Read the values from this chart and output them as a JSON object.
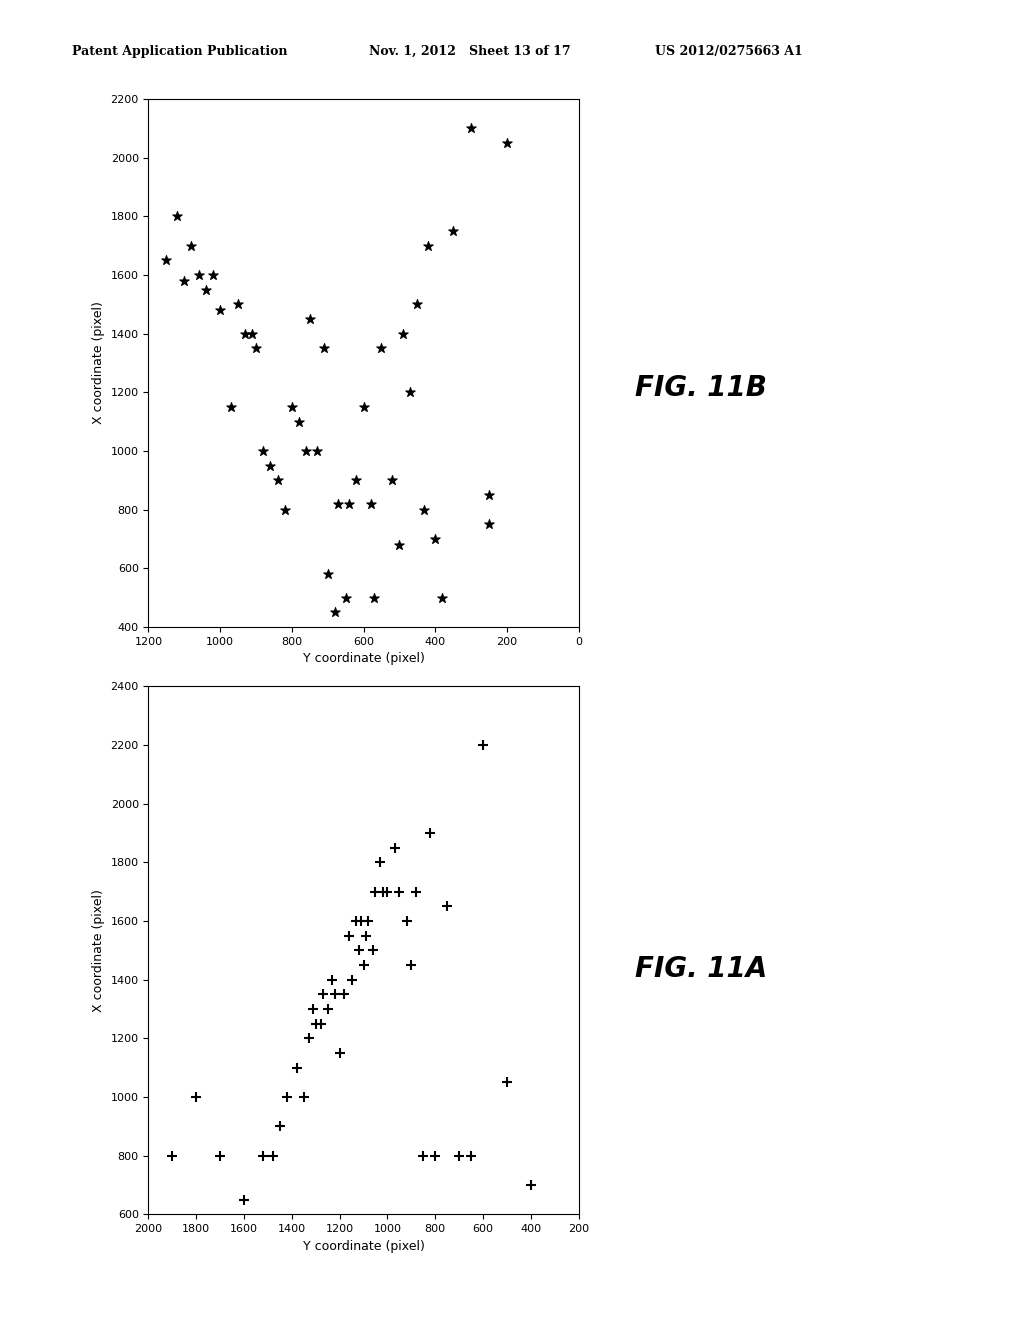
{
  "fig_width": 10.24,
  "fig_height": 13.2,
  "background_color": "#ffffff",
  "header_left": "Patent Application Publication",
  "header_mid": "Nov. 1, 2012   Sheet 13 of 17",
  "header_right": "US 2012/0275663 A1",
  "plot_11B": {
    "xlabel": "Y coordinate (pixel)",
    "ylabel": "X coordinate (pixel)",
    "fig_label": "FIG. 11B",
    "xlim_min": 0,
    "xlim_max": 1200,
    "ylim_min": 400,
    "ylim_max": 2200,
    "xticks": [
      0,
      200,
      400,
      600,
      800,
      1000,
      1200
    ],
    "yticks": [
      400,
      600,
      800,
      1000,
      1200,
      1400,
      1600,
      1800,
      2000,
      2200
    ],
    "marker": "*",
    "points_y": [
      200,
      250,
      250,
      300,
      350,
      380,
      400,
      420,
      430,
      450,
      470,
      490,
      500,
      520,
      550,
      570,
      580,
      600,
      620,
      640,
      650,
      670,
      680,
      700,
      710,
      730,
      750,
      760,
      780,
      800,
      820,
      840,
      860,
      880,
      900,
      910,
      930,
      950,
      970,
      1000,
      1020,
      1040,
      1060,
      1080,
      1100,
      1120,
      1150
    ],
    "points_x": [
      2050,
      750,
      850,
      2100,
      1750,
      500,
      700,
      1700,
      800,
      1500,
      1200,
      1400,
      680,
      900,
      1350,
      500,
      820,
      1150,
      900,
      820,
      500,
      820,
      450,
      580,
      1350,
      1000,
      1450,
      1000,
      1100,
      1150,
      800,
      900,
      950,
      1000,
      1350,
      1400,
      1400,
      1500,
      1150,
      1480,
      1600,
      1550,
      1600,
      1700,
      1580,
      1800,
      1650
    ]
  },
  "plot_11A": {
    "xlabel": "Y coordinate (pixel)",
    "ylabel": "X coordinate (pixel)",
    "fig_label": "FIG. 11A",
    "xlim_min": 200,
    "xlim_max": 2000,
    "ylim_min": 600,
    "ylim_max": 2400,
    "xticks": [
      200,
      400,
      600,
      800,
      1000,
      1200,
      1400,
      1600,
      1800,
      2000
    ],
    "yticks": [
      600,
      800,
      1000,
      1200,
      1400,
      1600,
      1800,
      2000,
      2200,
      2400
    ],
    "marker": "+",
    "points_y": [
      400,
      500,
      600,
      650,
      700,
      750,
      800,
      820,
      850,
      880,
      900,
      920,
      950,
      970,
      1000,
      1020,
      1030,
      1050,
      1060,
      1080,
      1090,
      1100,
      1110,
      1120,
      1130,
      1150,
      1160,
      1180,
      1200,
      1220,
      1230,
      1250,
      1270,
      1280,
      1300,
      1310,
      1330,
      1350,
      1380,
      1420,
      1450,
      1480,
      1520,
      1600,
      1700,
      1800,
      1900
    ],
    "points_x": [
      700,
      1050,
      2200,
      800,
      800,
      1650,
      800,
      1900,
      800,
      1700,
      1450,
      1600,
      1700,
      1850,
      1700,
      1700,
      1800,
      1700,
      1500,
      1600,
      1550,
      1450,
      1600,
      1500,
      1600,
      1400,
      1550,
      1350,
      1150,
      1350,
      1400,
      1300,
      1350,
      1250,
      1250,
      1300,
      1200,
      1000,
      1100,
      1000,
      900,
      800,
      800,
      650,
      800,
      1000,
      800
    ]
  }
}
